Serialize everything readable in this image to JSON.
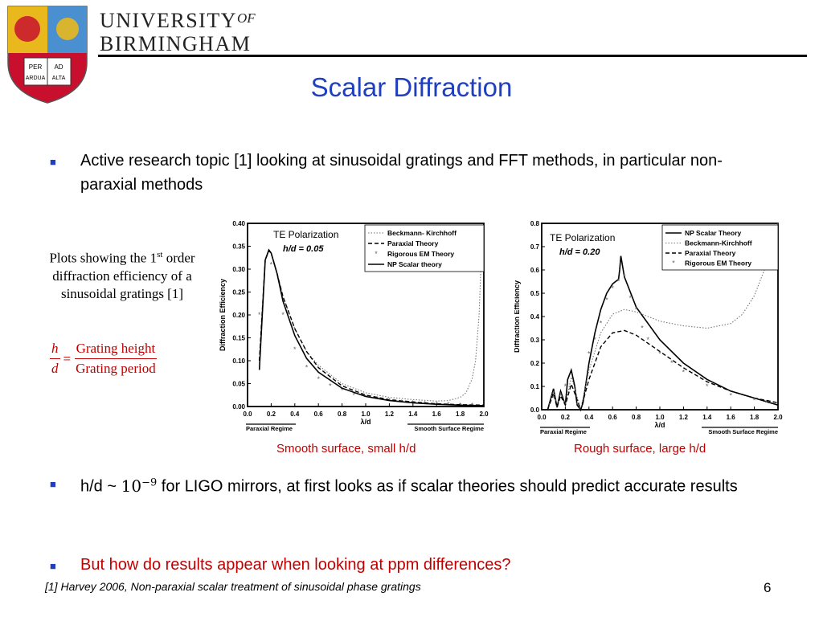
{
  "header": {
    "university_line1": "UNIVERSITY",
    "university_of": "OF",
    "university_line2": "BIRMINGHAM",
    "crest_motto": [
      "PER",
      "AD",
      "ARDUA",
      "ALTA"
    ]
  },
  "slide": {
    "title": "Scalar Diffraction",
    "bullet1": "Active research topic [1] looking at sinusoidal gratings and FFT methods, in particular non-paraxial methods",
    "side_note_pre": "Plots showing the 1",
    "side_note_sup": "st",
    "side_note_post": " order diffraction efficiency of  a sinusoidal gratings [1]",
    "formula": {
      "lhs_num": "h",
      "lhs_den": "d",
      "eq": "=",
      "rhs_num": "Grating height",
      "rhs_den": "Grating period"
    },
    "caption_left": "Smooth surface, small h/d",
    "caption_right": "Rough surface, large h/d",
    "bullet2_pre": "h/d ~ ",
    "bullet2_base": "10",
    "bullet2_exp": "−9",
    "bullet2_post": " for LIGO mirrors, at first looks as if scalar theories should predict accurate results",
    "bullet3": "But how do results appear when looking at ppm differences?",
    "footnote": "[1] Harvey 2006, Non-paraxial scalar treatment of sinusoidal phase gratings",
    "page_number": "6",
    "accent_color": "#1f3fbf",
    "highlight_color": "#c00000"
  },
  "chart_data": [
    {
      "type": "line",
      "annotation": "TE Polarization",
      "parameter": "h/d = 0.05",
      "xlabel": "λ/d",
      "ylabel": "Diffraction Efficiency",
      "xlim": [
        0.0,
        2.0
      ],
      "ylim": [
        0.0,
        0.4
      ],
      "xticks": [
        "0.0",
        "0.2",
        "0.4",
        "0.6",
        "0.8",
        "1.0",
        "1.2",
        "1.4",
        "1.6",
        "1.8",
        "2.0"
      ],
      "yticks": [
        "0.00",
        "0.05",
        "0.10",
        "0.15",
        "0.20",
        "0.25",
        "0.30",
        "0.35",
        "0.40"
      ],
      "regime_left": "Paraxial Regime",
      "regime_right": "Smooth Surface Regime",
      "series": [
        {
          "name": "Beckmann- Kirchhoff",
          "style": "dotted",
          "x": [
            0.1,
            0.15,
            0.18,
            0.2,
            0.25,
            0.3,
            0.4,
            0.5,
            0.6,
            0.8,
            1.0,
            1.2,
            1.4,
            1.6,
            1.7,
            1.8,
            1.85,
            1.9,
            1.93,
            1.96,
            1.98
          ],
          "y": [
            0.1,
            0.32,
            0.34,
            0.335,
            0.29,
            0.24,
            0.17,
            0.12,
            0.09,
            0.05,
            0.03,
            0.02,
            0.015,
            0.012,
            0.013,
            0.02,
            0.03,
            0.06,
            0.1,
            0.2,
            0.34
          ]
        },
        {
          "name": "Paraxial Theory",
          "style": "dashed",
          "x": [
            0.1,
            0.15,
            0.18,
            0.2,
            0.25,
            0.3,
            0.4,
            0.5,
            0.6,
            0.8,
            1.0,
            1.2,
            1.4,
            1.6,
            1.8,
            2.0
          ],
          "y": [
            0.1,
            0.32,
            0.34,
            0.335,
            0.29,
            0.24,
            0.17,
            0.12,
            0.085,
            0.045,
            0.025,
            0.015,
            0.01,
            0.006,
            0.004,
            0.003
          ]
        },
        {
          "name": "Rigorous EM Theory",
          "style": "points",
          "x": [
            0.1,
            0.2,
            0.3,
            0.4,
            0.5,
            0.6,
            0.7,
            0.8,
            0.9,
            1.0,
            1.1,
            1.2,
            1.3,
            1.4,
            1.5,
            1.6,
            1.7,
            1.8,
            1.9
          ],
          "y": [
            0.2,
            0.31,
            0.2,
            0.125,
            0.085,
            0.06,
            0.045,
            0.035,
            0.025,
            0.02,
            0.016,
            0.012,
            0.01,
            0.008,
            0.006,
            0.005,
            0.004,
            0.003,
            0.003
          ]
        },
        {
          "name": "NP Scalar theory",
          "style": "solid",
          "x": [
            0.1,
            0.15,
            0.18,
            0.2,
            0.25,
            0.3,
            0.4,
            0.5,
            0.6,
            0.8,
            1.0,
            1.2,
            1.4,
            1.6,
            1.8,
            2.0
          ],
          "y": [
            0.08,
            0.32,
            0.342,
            0.335,
            0.29,
            0.23,
            0.155,
            0.105,
            0.075,
            0.04,
            0.022,
            0.013,
            0.008,
            0.005,
            0.003,
            0.002
          ]
        }
      ]
    },
    {
      "type": "line",
      "annotation": "TE Polarization",
      "parameter": "h/d = 0.20",
      "xlabel": "λ/d",
      "ylabel": "Diffraction Efficiency",
      "xlim": [
        0.0,
        2.0
      ],
      "ylim": [
        0.0,
        0.8
      ],
      "xticks": [
        "0.0",
        "0.2",
        "0.4",
        "0.6",
        "0.8",
        "1.0",
        "1.2",
        "1.4",
        "1.6",
        "1.8",
        "2.0"
      ],
      "yticks": [
        "0.0",
        "0.1",
        "0.2",
        "0.3",
        "0.4",
        "0.5",
        "0.6",
        "0.7",
        "0.8"
      ],
      "regime_left": "Paraxial Regime",
      "regime_right": "Smooth Surface Regime",
      "series": [
        {
          "name": "NP Scalar Theory",
          "style": "solid",
          "x": [
            0.05,
            0.1,
            0.13,
            0.16,
            0.2,
            0.22,
            0.25,
            0.28,
            0.3,
            0.33,
            0.35,
            0.4,
            0.45,
            0.5,
            0.55,
            0.6,
            0.65,
            0.66,
            0.67,
            0.7,
            0.8,
            1.0,
            1.2,
            1.4,
            1.6,
            1.8,
            2.0
          ],
          "y": [
            0.0,
            0.09,
            0.01,
            0.08,
            0.02,
            0.13,
            0.17,
            0.1,
            0.02,
            0.0,
            0.03,
            0.2,
            0.33,
            0.43,
            0.5,
            0.54,
            0.56,
            0.6,
            0.66,
            0.57,
            0.44,
            0.3,
            0.2,
            0.13,
            0.08,
            0.05,
            0.02
          ]
        },
        {
          "name": "Beckmann-Kirchhoff",
          "style": "dotted",
          "x": [
            0.05,
            0.1,
            0.13,
            0.16,
            0.2,
            0.25,
            0.28,
            0.33,
            0.4,
            0.5,
            0.6,
            0.7,
            0.8,
            1.0,
            1.2,
            1.4,
            1.6,
            1.7,
            1.8,
            1.9,
            1.95,
            2.0
          ],
          "y": [
            0.0,
            0.08,
            0.01,
            0.07,
            0.02,
            0.14,
            0.09,
            0.0,
            0.17,
            0.33,
            0.41,
            0.43,
            0.42,
            0.38,
            0.36,
            0.35,
            0.37,
            0.41,
            0.49,
            0.62,
            0.72,
            0.8
          ]
        },
        {
          "name": "Paraxial Theory",
          "style": "dashed",
          "x": [
            0.05,
            0.1,
            0.13,
            0.16,
            0.2,
            0.25,
            0.28,
            0.33,
            0.4,
            0.5,
            0.6,
            0.7,
            0.8,
            1.0,
            1.2,
            1.4,
            1.6,
            1.8,
            2.0
          ],
          "y": [
            0.0,
            0.07,
            0.01,
            0.06,
            0.02,
            0.11,
            0.07,
            0.0,
            0.13,
            0.27,
            0.33,
            0.34,
            0.32,
            0.25,
            0.18,
            0.12,
            0.08,
            0.05,
            0.03
          ]
        },
        {
          "name": "Rigorous EM Theory",
          "style": "points",
          "x": [
            0.1,
            0.2,
            0.3,
            0.4,
            0.45,
            0.5,
            0.55,
            0.6,
            0.65,
            0.7,
            0.75,
            0.8,
            0.85,
            0.9,
            1.0,
            1.1,
            1.2,
            1.4,
            1.6,
            1.8,
            1.9
          ],
          "y": [
            0.05,
            0.1,
            0.02,
            0.24,
            0.3,
            0.37,
            0.47,
            0.52,
            0.55,
            0.57,
            0.48,
            0.43,
            0.35,
            0.3,
            0.24,
            0.2,
            0.16,
            0.1,
            0.06,
            0.04,
            0.03
          ]
        }
      ]
    }
  ]
}
